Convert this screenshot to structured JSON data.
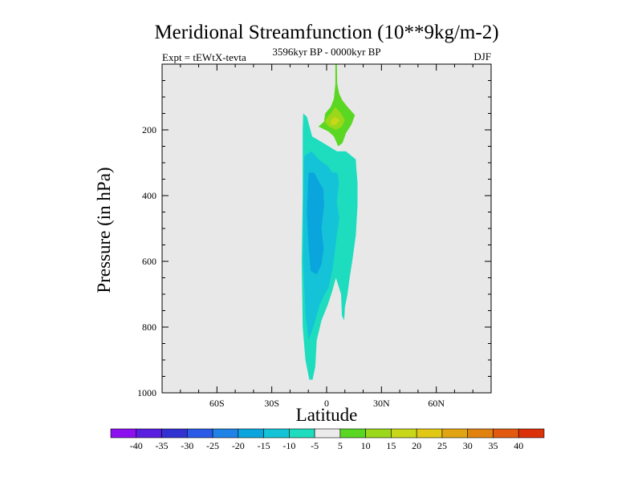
{
  "chart_data": {
    "type": "contour",
    "title": "Meridional Streamfunction (10**9kg/m-2)",
    "subtitle_left": "Expt = tEWtX-tevta",
    "subtitle_center": "3596kyr BP - 0000kyr BP",
    "subtitle_right": "DJF",
    "xlabel": "Latitude",
    "ylabel": "Pressure (in hPa)",
    "x_range": [
      -90,
      90
    ],
    "y_range": [
      0,
      1000
    ],
    "y_reversed": true,
    "x_ticks": [
      {
        "value": -60,
        "label": "60S"
      },
      {
        "value": -30,
        "label": "30S"
      },
      {
        "value": 0,
        "label": "0"
      },
      {
        "value": 30,
        "label": "30N"
      },
      {
        "value": 60,
        "label": "60N"
      }
    ],
    "y_ticks": [
      {
        "value": 200,
        "label": "200"
      },
      {
        "value": 400,
        "label": "400"
      },
      {
        "value": 600,
        "label": "600"
      },
      {
        "value": 800,
        "label": "800"
      },
      {
        "value": 1000,
        "label": "1000"
      }
    ],
    "background_color": "#e8e8e8",
    "contour_levels": [
      -40,
      -35,
      -30,
      -25,
      -20,
      -15,
      -10,
      -5,
      5,
      10,
      15,
      20,
      25,
      30,
      35,
      40
    ],
    "colorbar_colors": [
      "#8c0ff0",
      "#5a1ee0",
      "#3232d2",
      "#2a5ae6",
      "#1e82e6",
      "#0aa5dc",
      "#14c3d8",
      "#1edcbe",
      "#ebebeb",
      "#5ad722",
      "#9bd71a",
      "#c8d71a",
      "#e1c814",
      "#e1a514",
      "#e1820f",
      "#e15a0f",
      "#dc320a"
    ],
    "regions": [
      {
        "name": "negative-cell-outer",
        "level": "-5 to -10",
        "color": "#1edcbe",
        "points": [
          [
            -12.8,
            150
          ],
          [
            -10.8,
            160
          ],
          [
            -7.9,
            220
          ],
          [
            -1.8,
            240
          ],
          [
            5.6,
            265
          ],
          [
            10.6,
            265
          ],
          [
            16.0,
            290
          ],
          [
            16.3,
            320
          ],
          [
            16.9,
            360
          ],
          [
            16.9,
            430
          ],
          [
            16.0,
            520
          ],
          [
            14.0,
            600
          ],
          [
            12.6,
            650
          ],
          [
            11.4,
            700
          ],
          [
            10.0,
            740
          ],
          [
            9.6,
            780
          ],
          [
            8.4,
            765
          ],
          [
            7.9,
            700
          ],
          [
            5.1,
            650
          ],
          [
            3.1,
            690
          ],
          [
            0.8,
            730
          ],
          [
            -2.8,
            780
          ],
          [
            -5.4,
            840
          ],
          [
            -6.2,
            920
          ],
          [
            -7.7,
            960
          ],
          [
            -9.5,
            960
          ],
          [
            -11.6,
            900
          ],
          [
            -13.1,
            800
          ],
          [
            -13.6,
            600
          ],
          [
            -13.1,
            400
          ],
          [
            -13.1,
            200
          ]
        ]
      },
      {
        "name": "negative-cell-mid",
        "level": "-10 to -15",
        "color": "#14c3d8",
        "points": [
          [
            -12.2,
            280
          ],
          [
            -8.4,
            265
          ],
          [
            -4.3,
            290
          ],
          [
            0.6,
            310
          ],
          [
            3.1,
            330
          ],
          [
            5.8,
            330
          ],
          [
            6.7,
            360
          ],
          [
            5.6,
            420
          ],
          [
            6.9,
            470
          ],
          [
            5.6,
            520
          ],
          [
            3.4,
            620
          ],
          [
            1.1,
            680
          ],
          [
            -1.1,
            700
          ],
          [
            -3.6,
            730
          ],
          [
            -7.3,
            800
          ],
          [
            -9.9,
            840
          ],
          [
            -11.6,
            760
          ],
          [
            -12.8,
            600
          ],
          [
            -12.8,
            450
          ],
          [
            -12.5,
            330
          ]
        ]
      },
      {
        "name": "negative-cell-core",
        "level": "-15 to -20",
        "color": "#0aa5dc",
        "points": [
          [
            -9.9,
            330
          ],
          [
            -6.8,
            330
          ],
          [
            -3.9,
            360
          ],
          [
            -1.8,
            380
          ],
          [
            -1.4,
            430
          ],
          [
            -2.8,
            500
          ],
          [
            -1.6,
            560
          ],
          [
            -2.8,
            610
          ],
          [
            -5.4,
            640
          ],
          [
            -8.7,
            630
          ],
          [
            -9.9,
            550
          ],
          [
            -10.8,
            450
          ]
        ]
      },
      {
        "name": "positive-cell-outer",
        "level": "5 to 10",
        "color": "#5ad722",
        "points": [
          [
            4.8,
            0
          ],
          [
            5.6,
            0
          ],
          [
            5.8,
            60
          ],
          [
            6.9,
            90
          ],
          [
            8.6,
            110
          ],
          [
            11.4,
            130
          ],
          [
            15.5,
            155
          ],
          [
            13.5,
            185
          ],
          [
            10.6,
            210
          ],
          [
            8.7,
            240
          ],
          [
            6.3,
            250
          ],
          [
            4.0,
            220
          ],
          [
            1.1,
            205
          ],
          [
            -4.5,
            190
          ],
          [
            -1.4,
            175
          ],
          [
            -0.8,
            150
          ],
          [
            2.3,
            130
          ],
          [
            4.0,
            105
          ],
          [
            4.8,
            60
          ]
        ]
      },
      {
        "name": "positive-cell-mid",
        "level": "10 to 15",
        "color": "#9bd71a",
        "points": [
          [
            2.3,
            150
          ],
          [
            4.8,
            130
          ],
          [
            7.9,
            150
          ],
          [
            10.0,
            170
          ],
          [
            8.4,
            190
          ],
          [
            5.1,
            200
          ],
          [
            1.1,
            190
          ],
          [
            -1.1,
            175
          ],
          [
            0.6,
            160
          ]
        ]
      },
      {
        "name": "positive-cell-core",
        "level": "15 to 20",
        "color": "#c8d71a",
        "points": [
          [
            2.3,
            170
          ],
          [
            4.8,
            160
          ],
          [
            7.1,
            170
          ],
          [
            5.1,
            185
          ],
          [
            2.3,
            185
          ]
        ]
      }
    ]
  }
}
